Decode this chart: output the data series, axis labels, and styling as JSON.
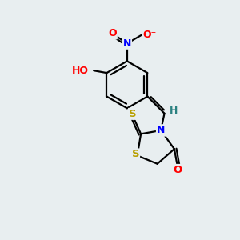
{
  "background_color": "#e8eef0",
  "bond_color": "#000000",
  "atom_colors": {
    "O": "#ff0000",
    "N": "#0000ff",
    "S": "#b8a000",
    "C": "#000000",
    "H": "#2a8080"
  },
  "figsize": [
    3.0,
    3.0
  ],
  "dpi": 100,
  "xlim": [
    0,
    10
  ],
  "ylim": [
    0,
    10
  ]
}
